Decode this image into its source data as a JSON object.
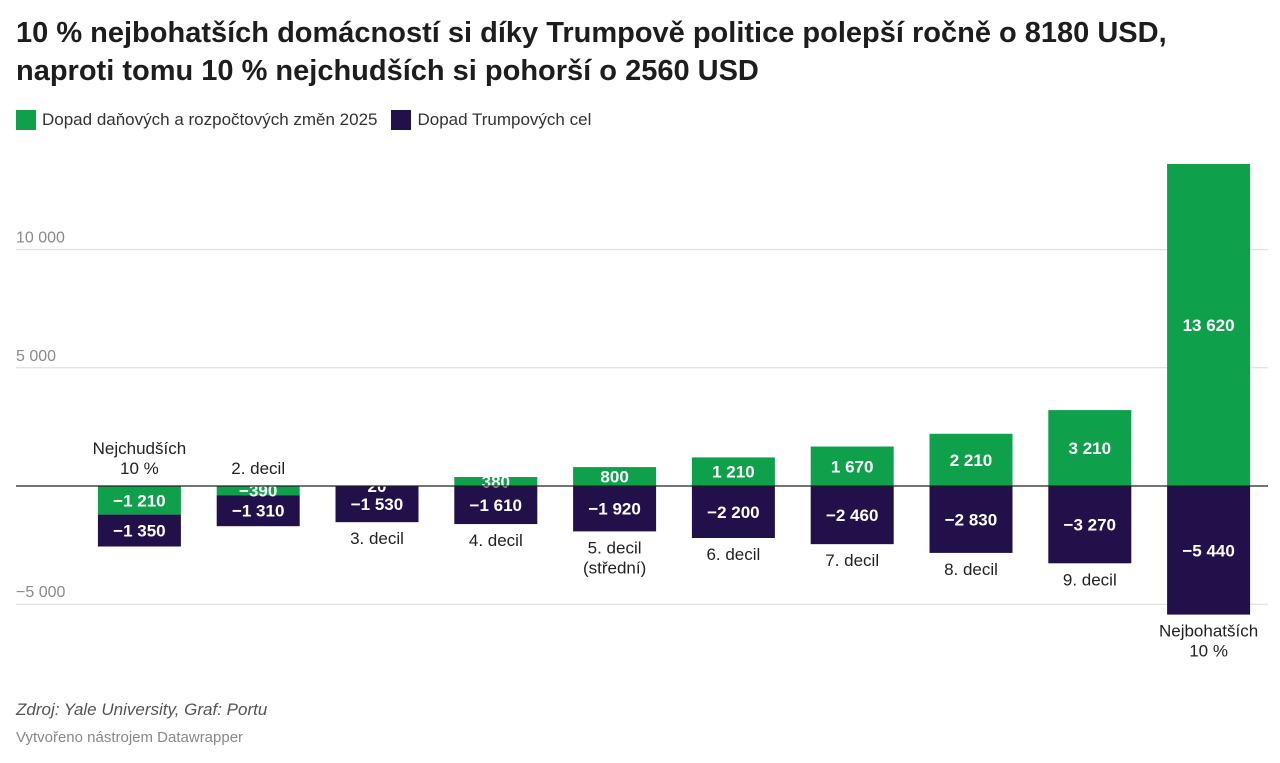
{
  "title": "10 % nejbohatších domácností si díky Trumpově politice polepší ročně o 8180 USD, naproti tomu 10 % nejchudších si pohorší o 2560 USD",
  "legend": [
    {
      "label": "Dopad daňových a rozpočtových změn 2025",
      "color": "#0fa04b"
    },
    {
      "label": "Dopad Trumpových cel",
      "color": "#22104a"
    }
  ],
  "footer": {
    "source": "Zdroj: Yale University, Graf: Portu",
    "credit": "Vytvořeno nástrojem Datawrapper"
  },
  "chart_data": {
    "type": "bar",
    "stacked": true,
    "categories": [
      [
        "Nejchudších",
        "10 %"
      ],
      [
        "2. decil"
      ],
      [
        "3. decil"
      ],
      [
        "4. decil"
      ],
      [
        "5. decil",
        "(střední)"
      ],
      [
        "6. decil"
      ],
      [
        "7. decil"
      ],
      [
        "8. decil"
      ],
      [
        "9. decil"
      ],
      [
        "Nejbohatších",
        "10 %"
      ]
    ],
    "series": [
      {
        "name": "Dopad daňových a rozpočtových změn 2025",
        "color": "#0fa04b",
        "values": [
          -1210,
          -390,
          20,
          380,
          800,
          1210,
          1670,
          2210,
          3210,
          13620
        ],
        "labels": [
          "−1 210",
          "−390",
          "20",
          "380",
          "800",
          "1 210",
          "1 670",
          "2 210",
          "3 210",
          "13 620"
        ]
      },
      {
        "name": "Dopad Trumpových cel",
        "color": "#22104a",
        "values": [
          -1350,
          -1310,
          -1530,
          -1610,
          -1920,
          -2200,
          -2460,
          -2830,
          -3270,
          -5440
        ],
        "labels": [
          "−1 350",
          "−1 310",
          "−1 530",
          "−1 610",
          "−1 920",
          "−2 200",
          "−2 460",
          "−2 830",
          "−3 270",
          "−5 440"
        ]
      }
    ],
    "yticks": [
      {
        "value": 10000,
        "label": "10 000"
      },
      {
        "value": 5000,
        "label": "5 000"
      },
      {
        "value": -5000,
        "label": "−5 000"
      }
    ],
    "ylim": [
      -5500,
      13700
    ],
    "grid": true,
    "legend_position": "top-left"
  }
}
